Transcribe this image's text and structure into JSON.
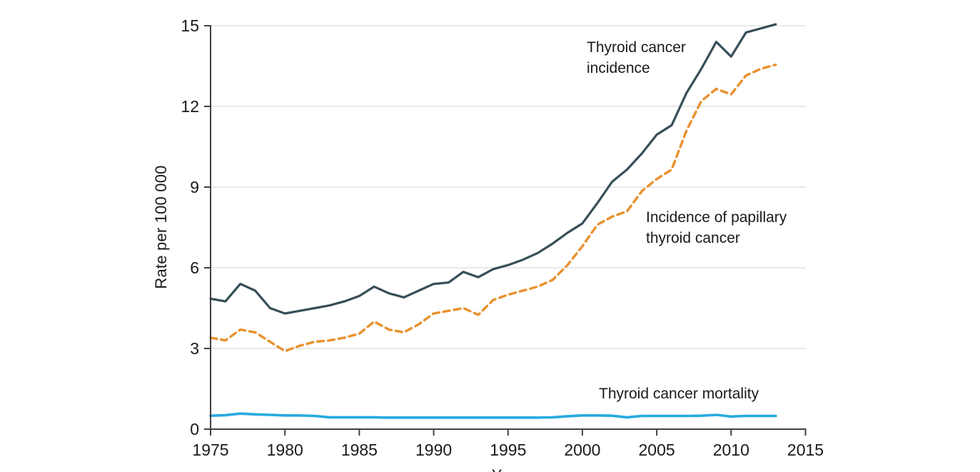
{
  "figure": {
    "background_color": "#ffffff",
    "text_color": "#1a1a1a",
    "axis_color": "#424242",
    "grid_color": "#e2e2e2"
  },
  "annotations": {
    "incidence": {
      "line1": "Thyroid cancer",
      "line2": "incidence"
    },
    "papillary": {
      "line1": "Incidence of papillary",
      "line2": "thyroid cancer"
    },
    "mortality": {
      "line1": "Thyroid cancer mortality"
    }
  },
  "chart_data": {
    "type": "line",
    "title": "",
    "xlabel": "Year",
    "ylabel": "Rate per 100 000",
    "xlim": [
      1975,
      2015
    ],
    "ylim": [
      0,
      15
    ],
    "xticks": [
      1975,
      1980,
      1985,
      1990,
      1995,
      2000,
      2005,
      2010,
      2015
    ],
    "yticks": [
      0,
      3,
      6,
      9,
      12,
      15
    ],
    "grid": "horizontal-only",
    "legend": "inline-text-annotations",
    "x": [
      1975,
      1976,
      1977,
      1978,
      1979,
      1980,
      1981,
      1982,
      1983,
      1984,
      1985,
      1986,
      1987,
      1988,
      1989,
      1990,
      1991,
      1992,
      1993,
      1994,
      1995,
      1996,
      1997,
      1998,
      1999,
      2000,
      2001,
      2002,
      2003,
      2004,
      2005,
      2006,
      2007,
      2008,
      2009,
      2010,
      2011,
      2012,
      2013
    ],
    "series": [
      {
        "id": "thyroid-cancer-incidence",
        "name": "Thyroid cancer incidence",
        "color": "#374E57",
        "line_style": "solid",
        "values": [
          4.85,
          4.75,
          5.4,
          5.15,
          4.5,
          4.3,
          4.4,
          4.5,
          4.6,
          4.75,
          4.95,
          5.3,
          5.05,
          4.9,
          5.15,
          5.4,
          5.45,
          5.85,
          5.65,
          5.95,
          6.1,
          6.3,
          6.55,
          6.9,
          7.3,
          7.65,
          8.4,
          9.2,
          9.65,
          10.25,
          10.95,
          11.3,
          12.5,
          13.4,
          14.4,
          13.85,
          14.75,
          14.9,
          15.05
        ]
      },
      {
        "id": "papillary-thyroid-cancer-incidence",
        "name": "Incidence of papillary thyroid cancer",
        "color": "#E9912E",
        "line_style": "dashed",
        "values": [
          3.4,
          3.3,
          3.7,
          3.6,
          3.25,
          2.9,
          3.1,
          3.25,
          3.3,
          3.4,
          3.55,
          4.0,
          3.7,
          3.6,
          3.9,
          4.3,
          4.4,
          4.5,
          4.25,
          4.8,
          5.0,
          5.15,
          5.3,
          5.55,
          6.1,
          6.8,
          7.6,
          7.9,
          8.1,
          8.85,
          9.3,
          9.65,
          11.1,
          12.2,
          12.65,
          12.45,
          13.15,
          13.4,
          13.55
        ]
      },
      {
        "id": "thyroid-cancer-mortality",
        "name": "Thyroid cancer mortality",
        "color": "#27AAE0",
        "line_style": "solid",
        "values": [
          0.5,
          0.52,
          0.58,
          0.55,
          0.53,
          0.51,
          0.51,
          0.49,
          0.44,
          0.44,
          0.44,
          0.44,
          0.43,
          0.43,
          0.43,
          0.43,
          0.43,
          0.43,
          0.43,
          0.43,
          0.43,
          0.43,
          0.43,
          0.44,
          0.48,
          0.51,
          0.51,
          0.5,
          0.44,
          0.49,
          0.49,
          0.49,
          0.49,
          0.5,
          0.53,
          0.47,
          0.49,
          0.49,
          0.49
        ]
      }
    ]
  }
}
